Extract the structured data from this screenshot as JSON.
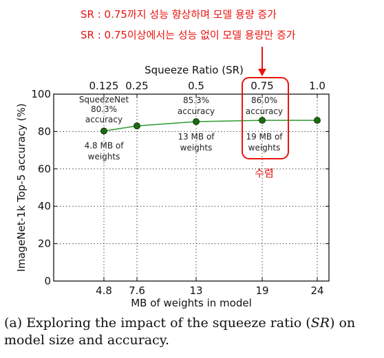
{
  "annotations_ko": {
    "line1": "SR : 0.75까지 성능 향상하며 모델 용량 증가",
    "line2": "SR : 0.75이상에서는 성능 없이 모델 용량만 증가",
    "converge": "수렴"
  },
  "caption": "(a) Exploring the impact of the squeeze ratio (SR) on model size and accuracy.",
  "chart_data": {
    "type": "line",
    "xlabel": "MB of weights in model",
    "ylabel": "ImageNet-1k Top-5 accuracy (%)",
    "top_axis_label": "Squeeze Ratio (SR)",
    "ylim": [
      0,
      100
    ],
    "y_ticks": [
      "0",
      "20",
      "40",
      "60",
      "80",
      "100"
    ],
    "x_tick_labels": [
      "4.8",
      "7.6",
      "13",
      "19",
      "24"
    ],
    "top_tick_labels": [
      "0.125",
      "0.25",
      "0.5",
      "0.75",
      "1.0"
    ],
    "grid": true,
    "series": [
      {
        "x": [
          4.8,
          7.6,
          13,
          19,
          24
        ],
        "sr": [
          0.125,
          0.25,
          0.5,
          0.75,
          1.0
        ],
        "y": [
          80.3,
          83.0,
          85.3,
          86.0,
          86.0
        ]
      }
    ],
    "point_labels": {
      "p0_top": [
        "SqueezeNet",
        "80.3%",
        "accuracy"
      ],
      "p0_bottom": [
        "4.8 MB of",
        "weights"
      ],
      "p2_top": [
        "85.3%",
        "accuracy"
      ],
      "p2_bottom": [
        "13 MB of",
        "weights"
      ],
      "p3_top": [
        "86.0%",
        "accuracy"
      ],
      "p3_bottom": [
        "19 MB of",
        "weights"
      ]
    },
    "line_color": "#2a9a2a",
    "marker_color": "#1d6b12",
    "highlight_color": "#e8130f"
  }
}
